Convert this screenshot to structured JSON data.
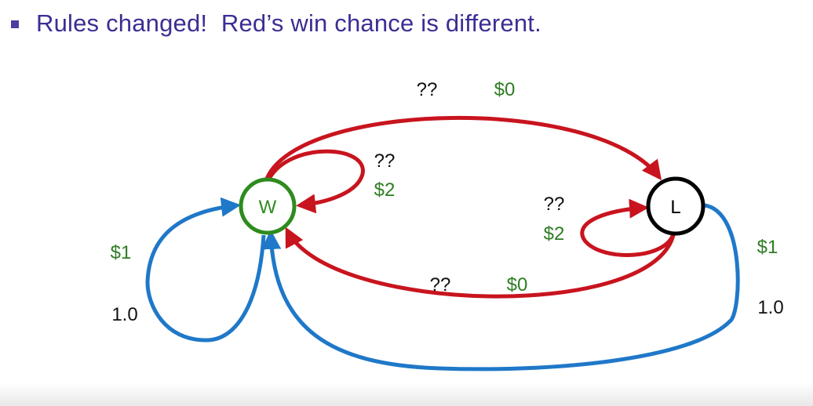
{
  "header": {
    "bullet_text": "Rules changed!  Red’s win chance is different."
  },
  "nodes": {
    "w": {
      "label": "W",
      "color": "#2e8b1e"
    },
    "l": {
      "label": "L",
      "color": "#000000"
    }
  },
  "edges": {
    "w_to_l": {
      "prob": "??",
      "reward": "$0",
      "color": "#c8141e"
    },
    "w_self": {
      "prob": "??",
      "reward": "$2",
      "color": "#c8141e"
    },
    "l_self": {
      "prob": "??",
      "reward": "$2",
      "color": "#c8141e"
    },
    "l_to_w_red": {
      "prob": "??",
      "reward": "$0",
      "color": "#c8141e"
    },
    "w_self_blue": {
      "prob": "1.0",
      "reward": "$1",
      "color": "#1f78c8"
    },
    "l_to_w_blue": {
      "prob": "1.0",
      "reward": "$1",
      "color": "#1f78c8"
    }
  }
}
